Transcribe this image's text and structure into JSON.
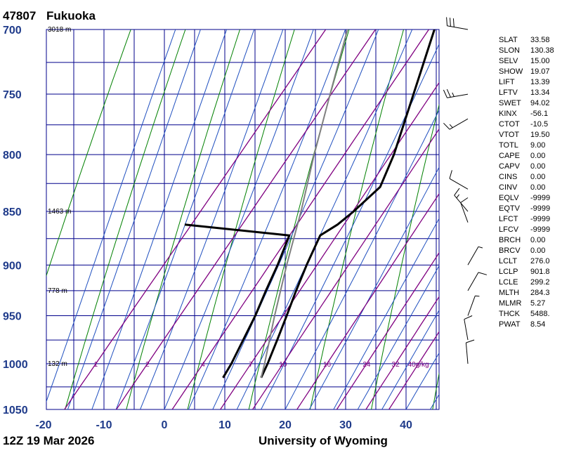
{
  "header": {
    "station_id": "47807",
    "station_name": "Fukuoka"
  },
  "footer": {
    "time": "12Z 19 Mar 2026",
    "source": "University of Wyoming"
  },
  "chart_data": {
    "type": "line",
    "subtype": "skew-t log-p sounding",
    "pressure_levels": [
      700,
      750,
      800,
      850,
      900,
      950,
      1000,
      1050
    ],
    "temperature_ticks": [
      -20,
      -10,
      0,
      10,
      20,
      30,
      40
    ],
    "xlim": [
      -20,
      45
    ],
    "ylim": [
      1050,
      700
    ],
    "y_scale": "log",
    "height_labels": [
      {
        "p": 700,
        "text": "3018 m"
      },
      {
        "p": 850,
        "text": "1463 m"
      },
      {
        "p": 925,
        "text": "778 m"
      },
      {
        "p": 1000,
        "text": "132 m"
      }
    ],
    "mixing_ratio_labels": [
      {
        "w": 1,
        "text": "1"
      },
      {
        "w": 2,
        "text": "2"
      },
      {
        "w": 4,
        "text": "4"
      },
      {
        "w": 7,
        "text": "7"
      },
      {
        "w": 10,
        "text": "10"
      },
      {
        "w": 16,
        "text": "16"
      },
      {
        "w": 24,
        "text": "24"
      },
      {
        "w": 32,
        "text": "32"
      },
      {
        "w": 40,
        "text": "40g/kg"
      }
    ],
    "series": [
      {
        "kind": "temperature",
        "color": "#000000",
        "points": [
          {
            "p": 1015,
            "t": 12.0
          },
          {
            "p": 1000,
            "t": 11.3
          },
          {
            "p": 975,
            "t": 9.9
          },
          {
            "p": 950,
            "t": 8.4
          },
          {
            "p": 925,
            "t": 6.8
          },
          {
            "p": 900,
            "t": 5.3
          },
          {
            "p": 872,
            "t": 3.8
          },
          {
            "p": 862,
            "t": 5.3
          },
          {
            "p": 850,
            "t": 6.3
          },
          {
            "p": 828,
            "t": 7.6
          },
          {
            "p": 800,
            "t": 5.8
          },
          {
            "p": 750,
            "t": 1.4
          },
          {
            "p": 700,
            "t": -3.3
          }
        ]
      },
      {
        "kind": "dewpoint",
        "color": "#000000",
        "points": [
          {
            "p": 1015,
            "t": 5.7
          },
          {
            "p": 1000,
            "t": 5.3
          },
          {
            "p": 950,
            "t": 3.2
          },
          {
            "p": 925,
            "t": 1.8
          },
          {
            "p": 900,
            "t": 0.5
          },
          {
            "p": 872,
            "t": -1.3
          },
          {
            "p": 862,
            "t": -20.0
          }
        ]
      },
      {
        "kind": "parcel",
        "color": "#808080",
        "points": [
          {
            "p": 1015,
            "t": 12.0
          },
          {
            "p": 1000,
            "t": 10.8
          },
          {
            "p": 950,
            "t": 6.4
          },
          {
            "p": 900,
            "t": 2.0
          },
          {
            "p": 850,
            "t": -2.4
          },
          {
            "p": 800,
            "t": -7.4
          },
          {
            "p": 750,
            "t": -12.4
          },
          {
            "p": 700,
            "t": -17.7
          }
        ]
      }
    ],
    "wind_barbs": [
      {
        "p": 1000,
        "dir": 355,
        "spd": 10
      },
      {
        "p": 975,
        "dir": 350,
        "spd": 10
      },
      {
        "p": 950,
        "dir": 20,
        "spd": 5
      },
      {
        "p": 925,
        "dir": 30,
        "spd": 10
      },
      {
        "p": 900,
        "dir": 30,
        "spd": 5
      },
      {
        "p": 860,
        "dir": 340,
        "spd": 10
      },
      {
        "p": 850,
        "dir": 320,
        "spd": 15
      },
      {
        "p": 830,
        "dir": 300,
        "spd": 10
      },
      {
        "p": 770,
        "dir": 240,
        "spd": 15
      },
      {
        "p": 750,
        "dir": 260,
        "spd": 25
      },
      {
        "p": 700,
        "dir": 280,
        "spd": 30
      }
    ]
  },
  "indices": [
    {
      "key": "SLAT",
      "value": "33.58"
    },
    {
      "key": "SLON",
      "value": "130.38"
    },
    {
      "key": "SELV",
      "value": "15.00"
    },
    {
      "key": "SHOW",
      "value": "19.07"
    },
    {
      "key": "LIFT",
      "value": "13.39"
    },
    {
      "key": "LFTV",
      "value": "13.34"
    },
    {
      "key": "SWET",
      "value": "94.02"
    },
    {
      "key": "KINX",
      "value": "-56.1"
    },
    {
      "key": "CTOT",
      "value": "-10.5"
    },
    {
      "key": "VTOT",
      "value": "19.50"
    },
    {
      "key": "TOTL",
      "value": "9.00"
    },
    {
      "key": "CAPE",
      "value": "0.00"
    },
    {
      "key": "CAPV",
      "value": "0.00"
    },
    {
      "key": "CINS",
      "value": "0.00"
    },
    {
      "key": "CINV",
      "value": "0.00"
    },
    {
      "key": "EQLV",
      "value": "-9999"
    },
    {
      "key": "EQTV",
      "value": "-9999"
    },
    {
      "key": "LFCT",
      "value": "-9999"
    },
    {
      "key": "LFCV",
      "value": "-9999"
    },
    {
      "key": "BRCH",
      "value": "0.00"
    },
    {
      "key": "BRCV",
      "value": "0.00"
    },
    {
      "key": "LCLT",
      "value": "276.0"
    },
    {
      "key": "LCLP",
      "value": "901.8"
    },
    {
      "key": "LCLE",
      "value": "299.2"
    },
    {
      "key": "MLTH",
      "value": "284.3"
    },
    {
      "key": "MLMR",
      "value": "5.27"
    },
    {
      "key": "THCK",
      "value": "5488."
    },
    {
      "key": "PWAT",
      "value": "8.54"
    }
  ]
}
